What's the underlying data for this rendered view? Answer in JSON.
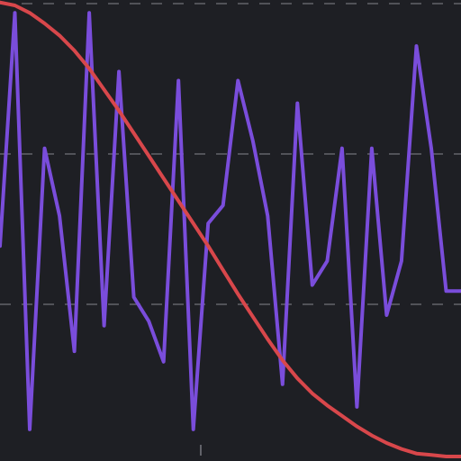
{
  "chart_data": {
    "type": "line",
    "title": "",
    "xlabel": "",
    "ylabel": "",
    "grid": true,
    "legend": "none",
    "background_color": "#1e1f24",
    "grid_color": "#62636a",
    "xlim": [
      0,
      31
    ],
    "ylim": [
      0,
      3
    ],
    "y_gridlines": [
      1,
      2,
      3
    ],
    "x_ticks": [
      13.5
    ],
    "series": [
      {
        "color": "#7a4ddb",
        "x": [
          0,
          1,
          2,
          3,
          4,
          5,
          6,
          7,
          8,
          9,
          10,
          11,
          12,
          13,
          14,
          15,
          16,
          17,
          18,
          19,
          20,
          21,
          22,
          23,
          24,
          25,
          26,
          27,
          28,
          29,
          30,
          31
        ],
        "values": [
          1.4,
          2.95,
          0.18,
          2.05,
          1.6,
          0.7,
          2.95,
          0.87,
          2.56,
          1.06,
          0.9,
          0.63,
          2.5,
          0.18,
          1.55,
          1.67,
          2.5,
          2.1,
          1.6,
          0.48,
          2.35,
          1.14,
          1.3,
          2.05,
          0.33,
          2.05,
          0.94,
          1.3,
          2.73,
          2.05,
          1.1,
          1.1
        ]
      },
      {
        "color": "#d8474b",
        "x": [
          0,
          1,
          2,
          3,
          4,
          5,
          6,
          7,
          8,
          9,
          10,
          11,
          12,
          13,
          14,
          15,
          16,
          17,
          18,
          19,
          20,
          21,
          22,
          23,
          24,
          25,
          26,
          27,
          28,
          29,
          30,
          31
        ],
        "values": [
          3.02,
          3.0,
          2.95,
          2.88,
          2.8,
          2.7,
          2.58,
          2.44,
          2.3,
          2.15,
          2.0,
          1.85,
          1.7,
          1.55,
          1.4,
          1.24,
          1.08,
          0.93,
          0.78,
          0.64,
          0.52,
          0.42,
          0.34,
          0.27,
          0.2,
          0.14,
          0.09,
          0.05,
          0.02,
          0.01,
          0.0,
          0.0
        ]
      }
    ]
  }
}
